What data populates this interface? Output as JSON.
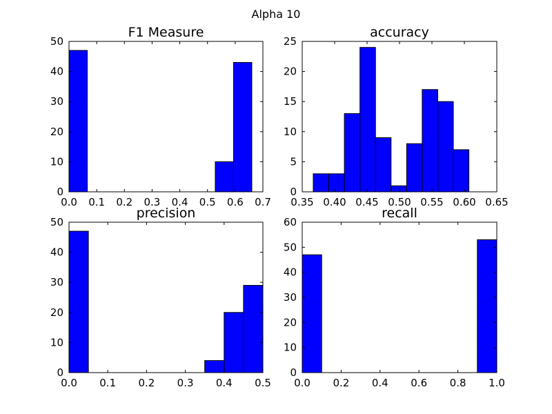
{
  "figure": {
    "suptitle": "Alpha 10",
    "bar_color": "#0000ff",
    "edge_color": "#000000"
  },
  "chart_data": [
    {
      "type": "bar",
      "title": "F1 Measure",
      "xlim": [
        0.0,
        0.7
      ],
      "ylim": [
        0,
        50
      ],
      "xticks": [
        "0.0",
        "0.1",
        "0.2",
        "0.3",
        "0.4",
        "0.5",
        "0.6",
        "0.7"
      ],
      "yticks": [
        "0",
        "10",
        "20",
        "30",
        "40",
        "50"
      ],
      "bins": [
        {
          "x0": 0.0,
          "x1": 0.066,
          "count": 47
        },
        {
          "x0": 0.066,
          "x1": 0.132,
          "count": 0
        },
        {
          "x0": 0.132,
          "x1": 0.198,
          "count": 0
        },
        {
          "x0": 0.198,
          "x1": 0.264,
          "count": 0
        },
        {
          "x0": 0.264,
          "x1": 0.33,
          "count": 0
        },
        {
          "x0": 0.33,
          "x1": 0.396,
          "count": 0
        },
        {
          "x0": 0.396,
          "x1": 0.462,
          "count": 0
        },
        {
          "x0": 0.462,
          "x1": 0.528,
          "count": 0
        },
        {
          "x0": 0.528,
          "x1": 0.594,
          "count": 10
        },
        {
          "x0": 0.594,
          "x1": 0.66,
          "count": 43
        }
      ]
    },
    {
      "type": "bar",
      "title": "accuracy",
      "xlim": [
        0.35,
        0.65
      ],
      "ylim": [
        0,
        25
      ],
      "xticks": [
        "0.35",
        "0.40",
        "0.45",
        "0.50",
        "0.55",
        "0.60",
        "0.65"
      ],
      "yticks": [
        "0",
        "5",
        "10",
        "15",
        "20",
        "25"
      ],
      "bins": [
        {
          "x0": 0.367,
          "x1": 0.391,
          "count": 3
        },
        {
          "x0": 0.391,
          "x1": 0.415,
          "count": 3
        },
        {
          "x0": 0.415,
          "x1": 0.439,
          "count": 13
        },
        {
          "x0": 0.439,
          "x1": 0.463,
          "count": 24
        },
        {
          "x0": 0.463,
          "x1": 0.487,
          "count": 9
        },
        {
          "x0": 0.487,
          "x1": 0.511,
          "count": 1
        },
        {
          "x0": 0.511,
          "x1": 0.535,
          "count": 8
        },
        {
          "x0": 0.535,
          "x1": 0.559,
          "count": 17
        },
        {
          "x0": 0.559,
          "x1": 0.583,
          "count": 15
        },
        {
          "x0": 0.583,
          "x1": 0.607,
          "count": 7
        }
      ]
    },
    {
      "type": "bar",
      "title": "precision",
      "xlim": [
        0.0,
        0.5
      ],
      "ylim": [
        0,
        50
      ],
      "xticks": [
        "0.0",
        "0.1",
        "0.2",
        "0.3",
        "0.4",
        "0.5"
      ],
      "yticks": [
        "0",
        "10",
        "20",
        "30",
        "40",
        "50"
      ],
      "bins": [
        {
          "x0": 0.0,
          "x1": 0.05,
          "count": 47
        },
        {
          "x0": 0.05,
          "x1": 0.1,
          "count": 0
        },
        {
          "x0": 0.1,
          "x1": 0.15,
          "count": 0
        },
        {
          "x0": 0.15,
          "x1": 0.2,
          "count": 0
        },
        {
          "x0": 0.2,
          "x1": 0.25,
          "count": 0
        },
        {
          "x0": 0.25,
          "x1": 0.3,
          "count": 0
        },
        {
          "x0": 0.3,
          "x1": 0.35,
          "count": 0
        },
        {
          "x0": 0.35,
          "x1": 0.4,
          "count": 4
        },
        {
          "x0": 0.4,
          "x1": 0.45,
          "count": 20
        },
        {
          "x0": 0.45,
          "x1": 0.5,
          "count": 29
        }
      ]
    },
    {
      "type": "bar",
      "title": "recall",
      "xlim": [
        0.0,
        1.0
      ],
      "ylim": [
        0,
        60
      ],
      "xticks": [
        "0.0",
        "0.2",
        "0.4",
        "0.6",
        "0.8",
        "1.0"
      ],
      "yticks": [
        "0",
        "10",
        "20",
        "30",
        "40",
        "50",
        "60"
      ],
      "bins": [
        {
          "x0": 0.0,
          "x1": 0.1,
          "count": 47
        },
        {
          "x0": 0.1,
          "x1": 0.2,
          "count": 0
        },
        {
          "x0": 0.2,
          "x1": 0.3,
          "count": 0
        },
        {
          "x0": 0.3,
          "x1": 0.4,
          "count": 0
        },
        {
          "x0": 0.4,
          "x1": 0.5,
          "count": 0
        },
        {
          "x0": 0.5,
          "x1": 0.6,
          "count": 0
        },
        {
          "x0": 0.6,
          "x1": 0.7,
          "count": 0
        },
        {
          "x0": 0.7,
          "x1": 0.8,
          "count": 0
        },
        {
          "x0": 0.8,
          "x1": 0.9,
          "count": 0
        },
        {
          "x0": 0.9,
          "x1": 1.0,
          "count": 53
        }
      ]
    }
  ]
}
